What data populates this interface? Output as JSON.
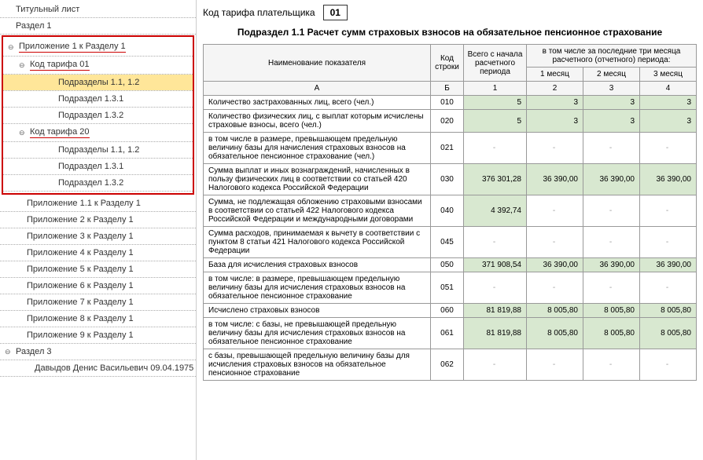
{
  "sidebar": {
    "items": [
      {
        "label": "Титульный лист",
        "level": 0,
        "toggle": ""
      },
      {
        "label": "Раздел 1",
        "level": 0,
        "toggle": ""
      }
    ],
    "boxed": [
      {
        "label": "Приложение 1 к Разделу 1",
        "level": 0,
        "toggle": "⊖",
        "underline": true
      },
      {
        "label": "Код тарифа 01",
        "level": 1,
        "toggle": "⊖",
        "underline": true
      },
      {
        "label": "Подразделы 1.1, 1.2",
        "level": 3,
        "toggle": "",
        "selected": true
      },
      {
        "label": "Подраздел 1.3.1",
        "level": 3,
        "toggle": ""
      },
      {
        "label": "Подраздел 1.3.2",
        "level": 3,
        "toggle": ""
      },
      {
        "label": "Код тарифа 20",
        "level": 1,
        "toggle": "⊖",
        "underline": true
      },
      {
        "label": "Подразделы 1.1, 1.2",
        "level": 3,
        "toggle": ""
      },
      {
        "label": "Подраздел 1.3.1",
        "level": 3,
        "toggle": ""
      },
      {
        "label": "Подраздел 1.3.2",
        "level": 3,
        "toggle": ""
      }
    ],
    "after": [
      {
        "label": "Приложение 1.1 к Разделу 1",
        "level": 1,
        "toggle": ""
      },
      {
        "label": "Приложение 2 к Разделу 1",
        "level": 1,
        "toggle": ""
      },
      {
        "label": "Приложение 3 к Разделу 1",
        "level": 1,
        "toggle": ""
      },
      {
        "label": "Приложение 4 к Разделу 1",
        "level": 1,
        "toggle": ""
      },
      {
        "label": "Приложение 5 к Разделу 1",
        "level": 1,
        "toggle": ""
      },
      {
        "label": "Приложение 6 к Разделу 1",
        "level": 1,
        "toggle": ""
      },
      {
        "label": "Приложение 7 к Разделу 1",
        "level": 1,
        "toggle": ""
      },
      {
        "label": "Приложение 8 к Разделу 1",
        "level": 1,
        "toggle": ""
      },
      {
        "label": "Приложение 9 к Разделу 1",
        "level": 1,
        "toggle": ""
      },
      {
        "label": "Раздел 3",
        "level": 0,
        "toggle": "⊖"
      },
      {
        "label": "Давыдов Денис Васильевич 09.04.1975",
        "level": 2,
        "toggle": ""
      }
    ]
  },
  "content": {
    "tariff_label": "Код тарифа плательщика",
    "tariff_code": "01",
    "section_title": "Подраздел 1.1 Расчет сумм страховых взносов на обязательное пенсионное страхование",
    "headers": {
      "name": "Наименование показателя",
      "code": "Код строки",
      "total": "Всего с начала расчетного периода",
      "last3": "в том числе за последние три месяца расчетного (отчетного) периода:",
      "m1": "1 месяц",
      "m2": "2 месяц",
      "m3": "3 месяц",
      "colA": "А",
      "colB": "Б",
      "col1": "1",
      "col2": "2",
      "col3": "3",
      "col4": "4"
    },
    "rows": [
      {
        "name": "Количество застрахованных лиц, всего (чел.)",
        "code": "010",
        "v1": "5",
        "v2": "3",
        "v3": "3",
        "v4": "3",
        "filled": true
      },
      {
        "name": "Количество физических лиц, с выплат которым исчислены страховые взносы, всего (чел.)",
        "code": "020",
        "v1": "5",
        "v2": "3",
        "v3": "3",
        "v4": "3",
        "filled": true
      },
      {
        "name": "в том числе в размере, превышающем предельную величину базы для начисления страховых взносов на обязательное пенсионное страхование (чел.)",
        "code": "021",
        "v1": "-",
        "v2": "-",
        "v3": "-",
        "v4": "-",
        "filled": false
      },
      {
        "name": "Сумма выплат и иных вознаграждений, начисленных в пользу физических лиц в соответствии со статьей 420 Налогового кодекса Российской Федерации",
        "code": "030",
        "v1": "376 301,28",
        "v2": "36 390,00",
        "v3": "36 390,00",
        "v4": "36 390,00",
        "filled": true
      },
      {
        "name": "Сумма, не подлежащая обложению страховыми взносами в соответствии со статьей 422 Налогового кодекса Российской Федерации и международными договорами",
        "code": "040",
        "v1": "4 392,74",
        "v2": "-",
        "v3": "-",
        "v4": "-",
        "filled": true,
        "partialFill": [
          true,
          false,
          false,
          false
        ]
      },
      {
        "name": "Сумма расходов, принимаемая к вычету в соответствии с пунктом 8 статьи 421 Налогового кодекса Российской Федерации",
        "code": "045",
        "v1": "-",
        "v2": "-",
        "v3": "-",
        "v4": "-",
        "filled": false
      },
      {
        "name": "База для исчисления страховых взносов",
        "code": "050",
        "v1": "371 908,54",
        "v2": "36 390,00",
        "v3": "36 390,00",
        "v4": "36 390,00",
        "filled": true
      },
      {
        "name": "в том числе:\nв размере, превышающем предельную величину базы для исчисления страховых взносов на обязательное пенсионное страхование",
        "code": "051",
        "v1": "-",
        "v2": "-",
        "v3": "-",
        "v4": "-",
        "filled": false
      },
      {
        "name": "Исчислено страховых взносов",
        "code": "060",
        "v1": "81 819,88",
        "v2": "8 005,80",
        "v3": "8 005,80",
        "v4": "8 005,80",
        "filled": true
      },
      {
        "name": "в том числе:\nс базы, не превышающей предельную величину базы для исчисления страховых взносов на обязательное пенсионное страхование",
        "code": "061",
        "v1": "81 819,88",
        "v2": "8 005,80",
        "v3": "8 005,80",
        "v4": "8 005,80",
        "filled": true
      },
      {
        "name": "с базы, превышающей предельную величину базы для исчисления страховых взносов на обязательное пенсионное страхование",
        "code": "062",
        "v1": "-",
        "v2": "-",
        "v3": "-",
        "v4": "-",
        "filled": false
      }
    ]
  }
}
